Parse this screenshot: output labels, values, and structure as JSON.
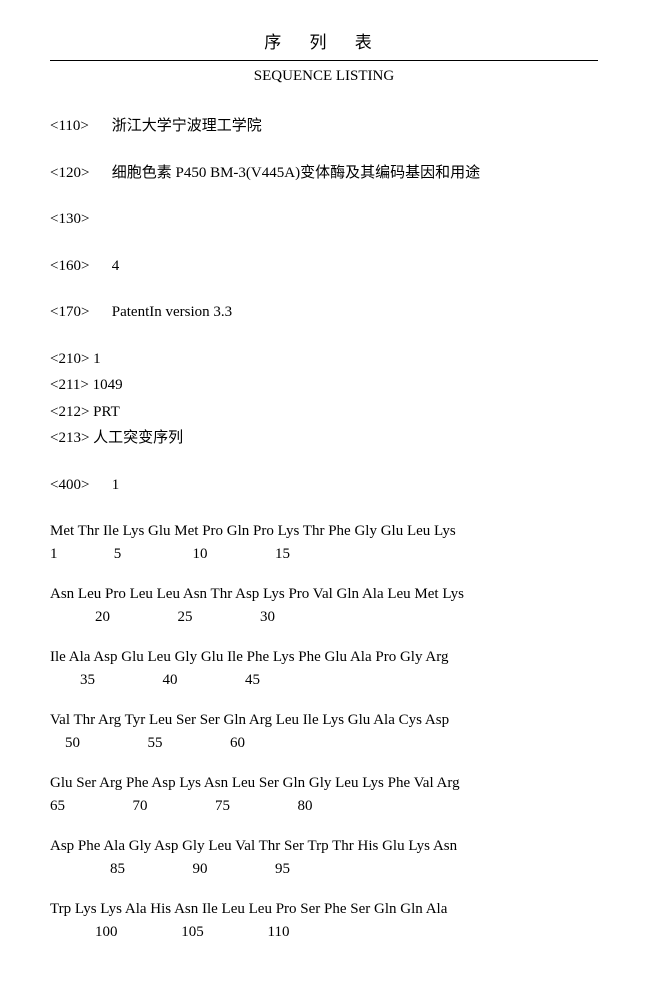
{
  "header": {
    "title_ch": "序 列 表",
    "title_en": "SEQUENCE LISTING"
  },
  "meta": {
    "e110": {
      "tag": "<110>",
      "value": "浙江大学宁波理工学院"
    },
    "e120": {
      "tag": "<120>",
      "value": "细胞色素 P450 BM-3(V445A)变体酶及其编码基因和用途"
    },
    "e130": {
      "tag": "<130>",
      "value": ""
    },
    "e160": {
      "tag": "<160>",
      "value": "4"
    },
    "e170": {
      "tag": "<170>",
      "value": "PatentIn version 3.3"
    }
  },
  "seq_header": {
    "e210": {
      "tag": "<210>",
      "value": "1"
    },
    "e211": {
      "tag": "<211>",
      "value": "1049"
    },
    "e212": {
      "tag": "<212>",
      "value": "PRT"
    },
    "e213": {
      "tag": "<213>",
      "value": "人工突变序列"
    }
  },
  "e400": {
    "tag": "<400>",
    "value": "1"
  },
  "sequence": {
    "rows": [
      {
        "aa": "Met Thr Ile Lys Glu Met Pro Gln Pro Lys Thr Phe Gly Glu Leu Lys",
        "num": "1               5                   10                  15"
      },
      {
        "aa": "Asn Leu Pro Leu Leu Asn Thr Asp Lys Pro Val Gln Ala Leu Met Lys",
        "num": "            20                  25                  30"
      },
      {
        "aa": "Ile Ala Asp Glu Leu Gly Glu Ile Phe Lys Phe Glu Ala Pro Gly Arg",
        "num": "        35                  40                  45"
      },
      {
        "aa": "Val Thr Arg Tyr Leu Ser Ser Gln Arg Leu Ile Lys Glu Ala Cys Asp",
        "num": "    50                  55                  60"
      },
      {
        "aa": "Glu Ser Arg Phe Asp Lys Asn Leu Ser Gln Gly Leu Lys Phe Val Arg",
        "num": "65                  70                  75                  80"
      },
      {
        "aa": "Asp Phe Ala Gly Asp Gly Leu Val Thr Ser Trp Thr His Glu Lys Asn",
        "num": "                85                  90                  95"
      },
      {
        "aa": "Trp Lys Lys Ala His Asn Ile Leu Leu Pro Ser Phe Ser Gln Gln Ala",
        "num": "            100                 105                 110"
      }
    ]
  }
}
